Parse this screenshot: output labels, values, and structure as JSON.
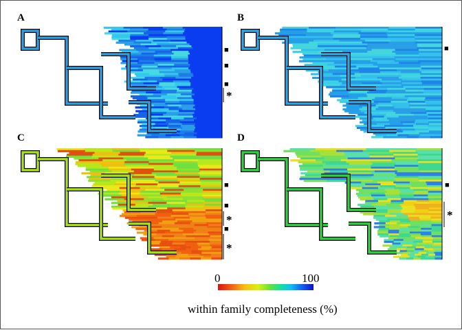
{
  "panels": [
    {
      "label": "A",
      "branch_color": "#2a9fe6",
      "palette": [
        "#1565e8",
        "#0a3cf0",
        "#2a9fe6",
        "#35c8ef",
        "#1e7de9",
        "#48d8e0"
      ]
    },
    {
      "label": "B",
      "branch_color": "#28a8ea",
      "palette": [
        "#34c0ec",
        "#2a9fe6",
        "#3ad0e6",
        "#23a0e8",
        "#44d6dc",
        "#1f85e6"
      ]
    },
    {
      "label": "C",
      "branch_color": "#a8e020",
      "palette": [
        "#b8e81c",
        "#e8e81a",
        "#90e030",
        "#f0c010",
        "#70e040",
        "#e05010"
      ]
    },
    {
      "label": "D",
      "branch_color": "#30d040",
      "palette": [
        "#70e060",
        "#a8e038",
        "#40d890",
        "#e8e020",
        "#58e0a8",
        "#2f80e8"
      ]
    }
  ],
  "legend": {
    "min_label": "0",
    "max_label": "100",
    "title": "within family completeness (%)",
    "colors": [
      "#e01010",
      "#f06010",
      "#f8c010",
      "#d8f010",
      "#60e040",
      "#10e0a0",
      "#10c0f0",
      "#1060f0",
      "#1010c0"
    ]
  },
  "markers": {
    "square": "■",
    "star": "*"
  }
}
